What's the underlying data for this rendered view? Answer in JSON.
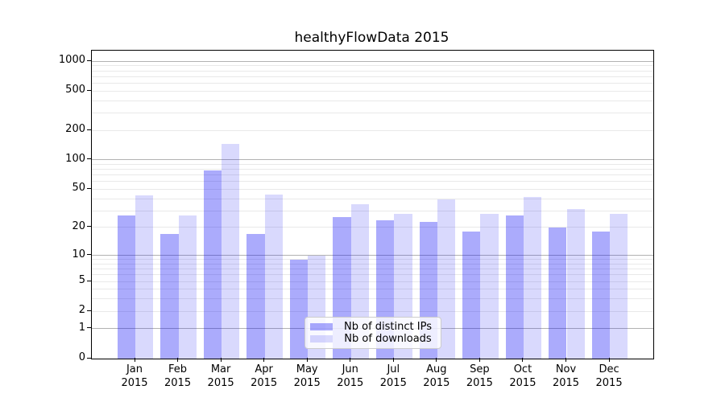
{
  "title": "healthyFlowData 2015",
  "colors": {
    "ips_bar": "rgba(10,10,245,0.34)",
    "downloads_bar": "rgba(10,10,245,0.155)",
    "major_grid": "#b2b2b2",
    "minor_grid": "#e9e9e9",
    "axis": "#000000",
    "text": "#000000",
    "legend_border": "#cccccc",
    "legend_background": "rgba(255,255,255,0.8)"
  },
  "legend": {
    "items": [
      {
        "label": "Nb of distinct IPs",
        "color_key": "ips_bar"
      },
      {
        "label": "Nb of downloads",
        "color_key": "downloads_bar"
      }
    ]
  },
  "chart_data": {
    "type": "bar",
    "title": "healthyFlowData 2015",
    "xlabel": "",
    "ylabel": "",
    "scale": "log1p",
    "grid": "both",
    "legend_position": "lower center",
    "categories": [
      "Jan 2015",
      "Feb 2015",
      "Mar 2015",
      "Apr 2015",
      "May 2015",
      "Jun 2015",
      "Jul 2015",
      "Aug 2015",
      "Sep 2015",
      "Oct 2015",
      "Nov 2015",
      "Dec 2015"
    ],
    "series": [
      {
        "name": "Nb of distinct IPs",
        "values": [
          27,
          17,
          78,
          17,
          9,
          26,
          24,
          23,
          18,
          27,
          20,
          18
        ]
      },
      {
        "name": "Nb of downloads",
        "values": [
          43,
          27,
          145,
          44,
          10,
          35,
          28,
          39,
          28,
          42,
          31,
          28
        ]
      }
    ],
    "y_ticks": [
      0,
      1,
      2,
      5,
      10,
      20,
      50,
      100,
      200,
      500,
      1000
    ],
    "y_major_gridlines": [
      1,
      10,
      100,
      1000
    ],
    "ylim": [
      0,
      1277
    ]
  }
}
